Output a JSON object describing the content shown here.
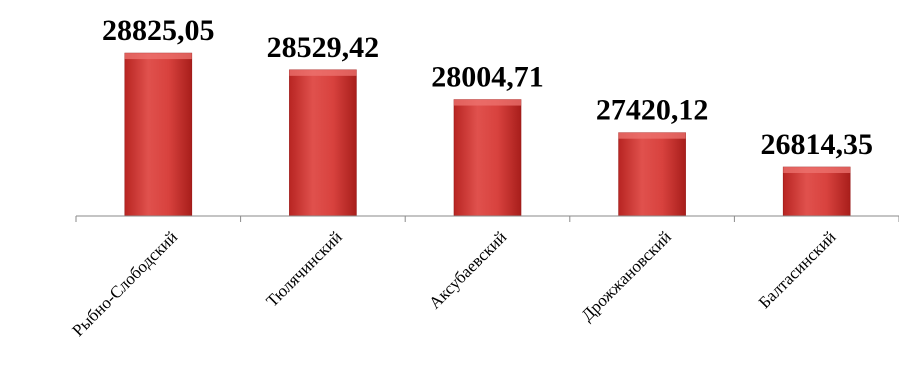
{
  "chart_data": {
    "type": "bar",
    "categories": [
      "Рыбно-Слободский",
      "Тюлячинский",
      "Аксубаевский",
      "Дрожжановский",
      "Балтасинский"
    ],
    "values": [
      28825.05,
      28529.42,
      28004.71,
      27420.12,
      26814.35
    ],
    "value_labels": [
      "28825,05",
      "28529,42",
      "28004,71",
      "27420,12",
      "26814,35"
    ],
    "title": "",
    "xlabel": "",
    "ylabel": "",
    "ylim": [
      25950,
      28950
    ],
    "grid": false,
    "legend": "none",
    "colors": {
      "bar_top": "#e8605c",
      "bar_mid": "#cc3a36",
      "bar_bottom": "#a81e1b",
      "axis": "#8a8a8a"
    }
  }
}
